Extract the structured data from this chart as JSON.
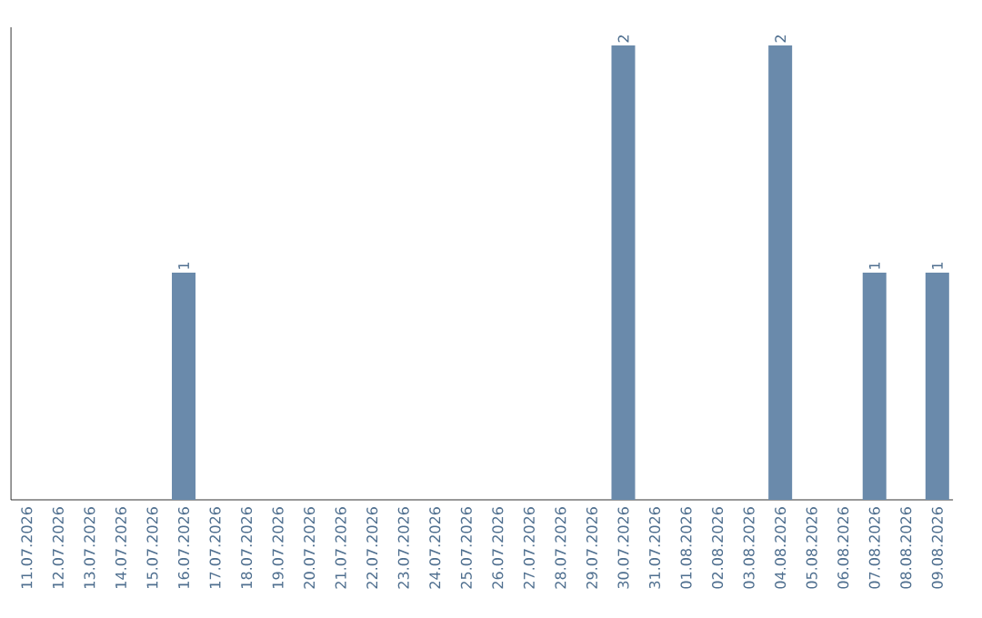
{
  "chart_data": {
    "type": "bar",
    "relative": false,
    "tick_labels": "x",
    "color": "#6a8aab",
    "categories": [
      "11.07.2026",
      "12.07.2026",
      "13.07.2026",
      "14.07.2026",
      "15.07.2026",
      "16.07.2026",
      "17.07.2026",
      "18.07.2026",
      "19.07.2026",
      "20.07.2026",
      "21.07.2026",
      "22.07.2026",
      "23.07.2026",
      "24.07.2026",
      "25.07.2026",
      "26.07.2026",
      "27.07.2026",
      "28.07.2026",
      "29.07.2026",
      "30.07.2026",
      "31.07.2026",
      "01.08.2026",
      "02.08.2026",
      "03.08.2026",
      "04.08.2026",
      "05.08.2026",
      "06.08.2026",
      "07.08.2026",
      "08.08.2026",
      "09.08.2026"
    ],
    "values": [
      0,
      0,
      0,
      0,
      0,
      1,
      0,
      0,
      0,
      0,
      0,
      0,
      0,
      0,
      0,
      0,
      0,
      0,
      0,
      2,
      0,
      0,
      0,
      0,
      2,
      0,
      0,
      1,
      0,
      1
    ],
    "value_labels": [
      null,
      null,
      null,
      null,
      null,
      "1",
      null,
      null,
      null,
      null,
      null,
      null,
      null,
      null,
      null,
      null,
      null,
      null,
      null,
      "2",
      null,
      null,
      null,
      null,
      "2",
      null,
      null,
      "1",
      null,
      "1"
    ]
  }
}
